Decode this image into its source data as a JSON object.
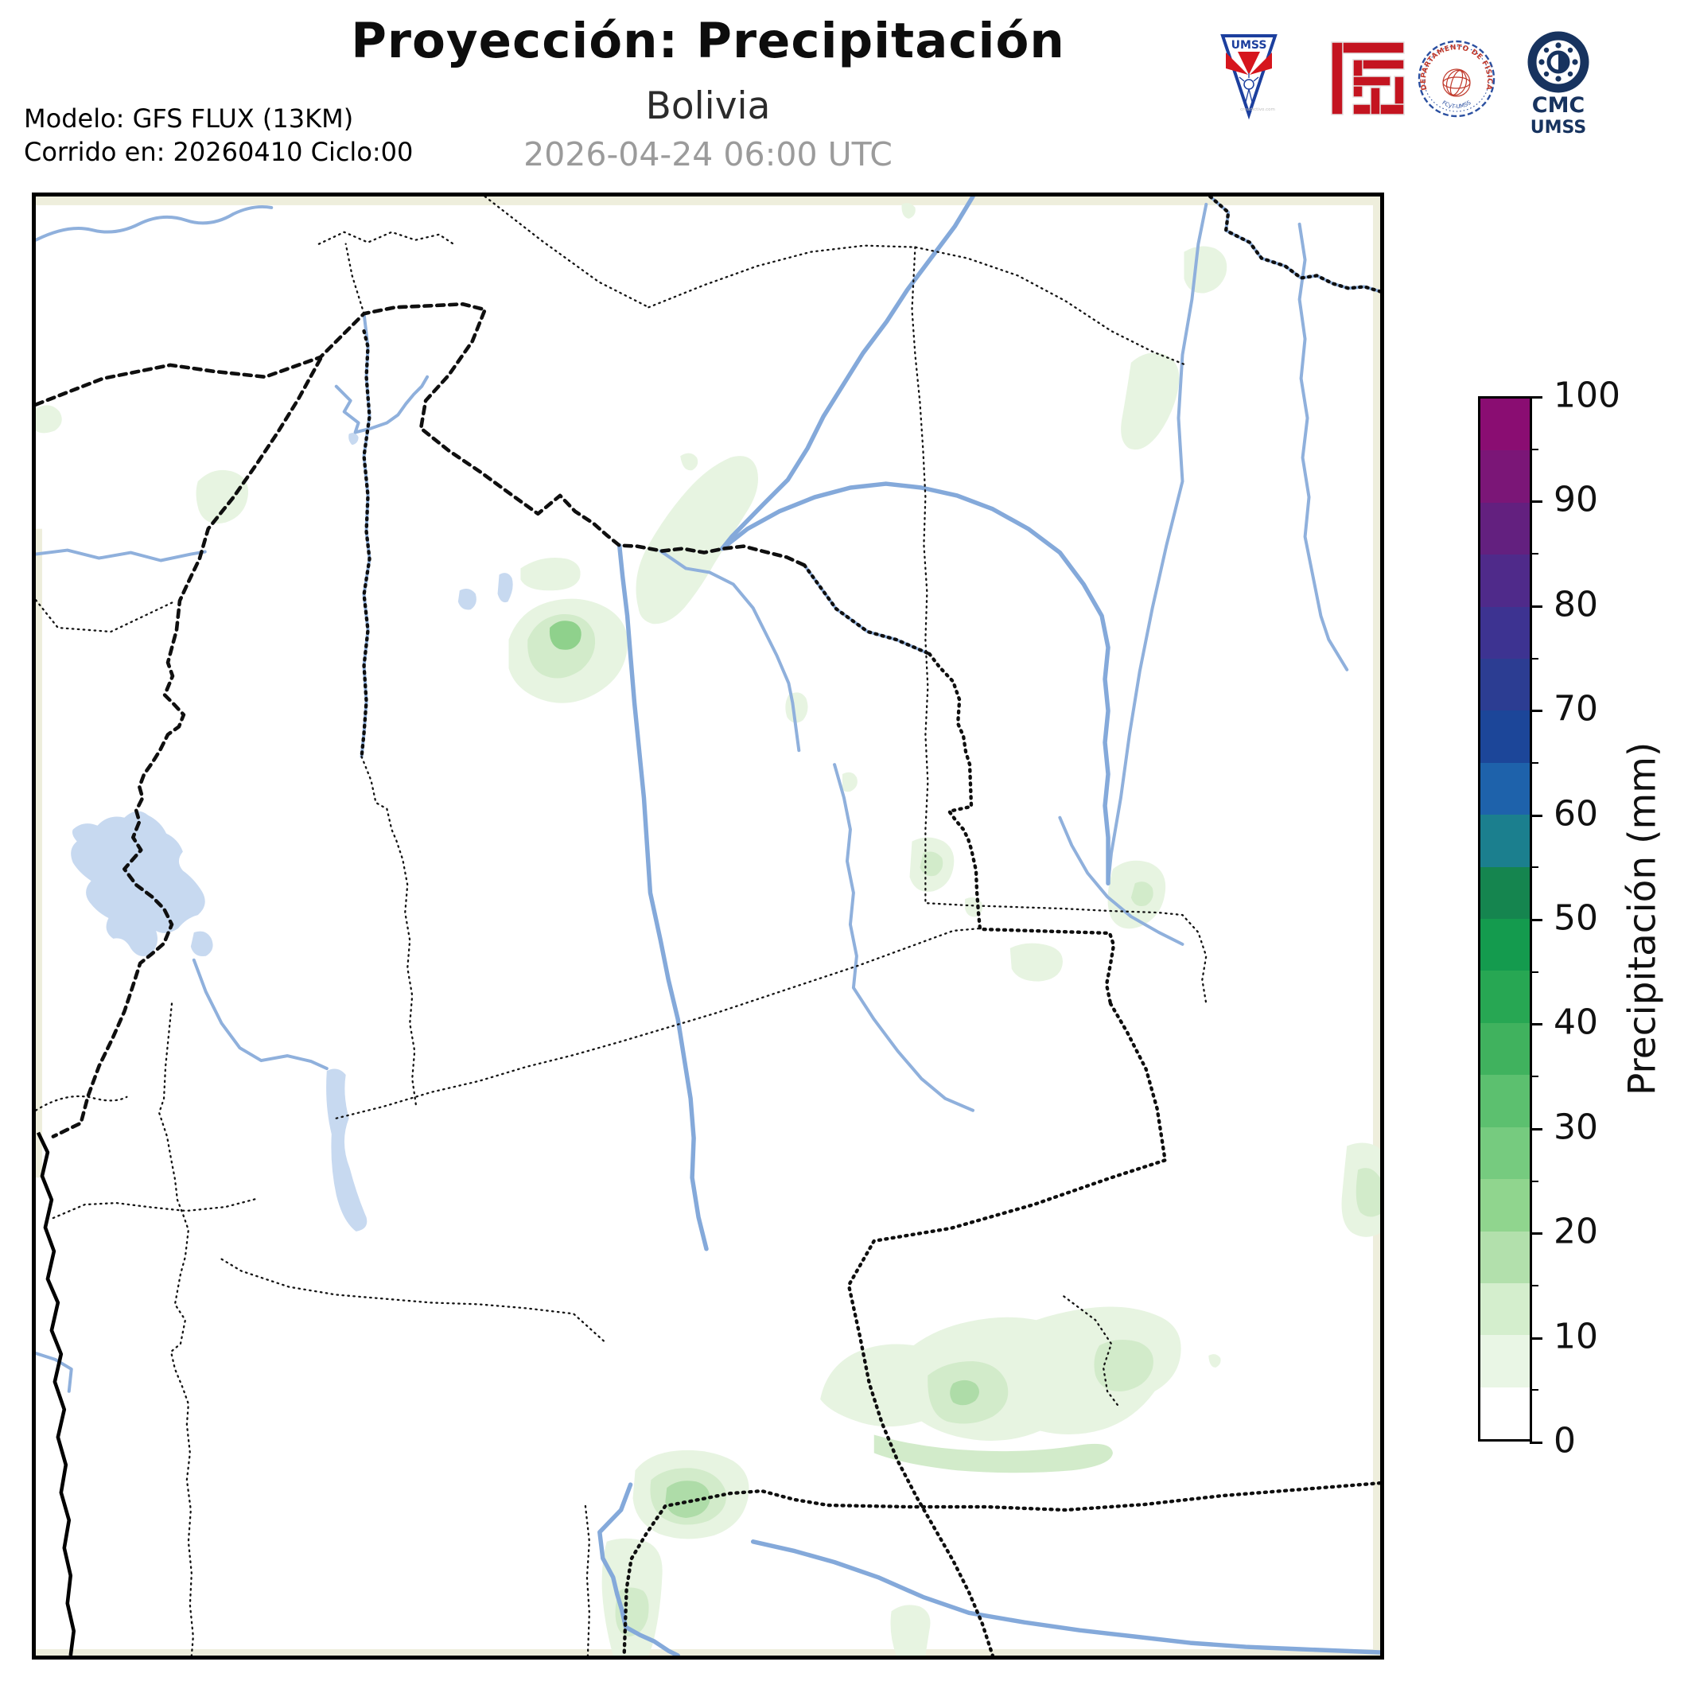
{
  "header": {
    "title": "Proyección: Precipitación",
    "subtitle": "Bolivia",
    "valid_datetime": "2026-04-24 06:00 UTC",
    "model_line1": "Modelo: GFS FLUX (13KM)",
    "model_line2": "Corrido en: 20260410 Ciclo:00"
  },
  "logos": {
    "umss_label": "UMSS",
    "umss_watermark": "creadictivo.com",
    "seal_text_top": "DEPARTAMENTO DE FÍSICA",
    "seal_text_bottom": "FCyT-UMSS",
    "cmc_line1": "CMC",
    "cmc_line2": "UMSS"
  },
  "colorbar": {
    "axis_label": "Precipitación (mm)",
    "unit": "mm",
    "min": 0,
    "max": 100,
    "major_ticks": [
      0,
      10,
      20,
      30,
      40,
      50,
      60,
      70,
      80,
      90,
      100
    ],
    "minor_ticks": [
      5,
      15,
      25,
      35,
      45,
      55,
      65,
      75,
      85,
      95
    ],
    "band_step_mm": 5,
    "band_colors_low_to_high": [
      "#ffffff",
      "#e9f6e5",
      "#d4eecd",
      "#b2e0ac",
      "#90d58e",
      "#76cb7f",
      "#5cc06f",
      "#40b25e",
      "#27a753",
      "#149b4e",
      "#15854f",
      "#1b7f8e",
      "#1e62ab",
      "#1c4699",
      "#2c3d92",
      "#3d3391",
      "#4f2a8a",
      "#63207f",
      "#7b1677",
      "#8a0d72"
    ]
  },
  "map": {
    "region": "Bolivia",
    "feature_colors": {
      "river": "#8fb0dc",
      "lake": "#c7d9f0",
      "border": "#0f0f0f",
      "grid_edge": "#eeeedc",
      "precip_light": "#e7f4e1",
      "precip_light2": "#d2ebca",
      "precip_medium": "#aedca8",
      "precip_core": "#8fd18c"
    }
  }
}
